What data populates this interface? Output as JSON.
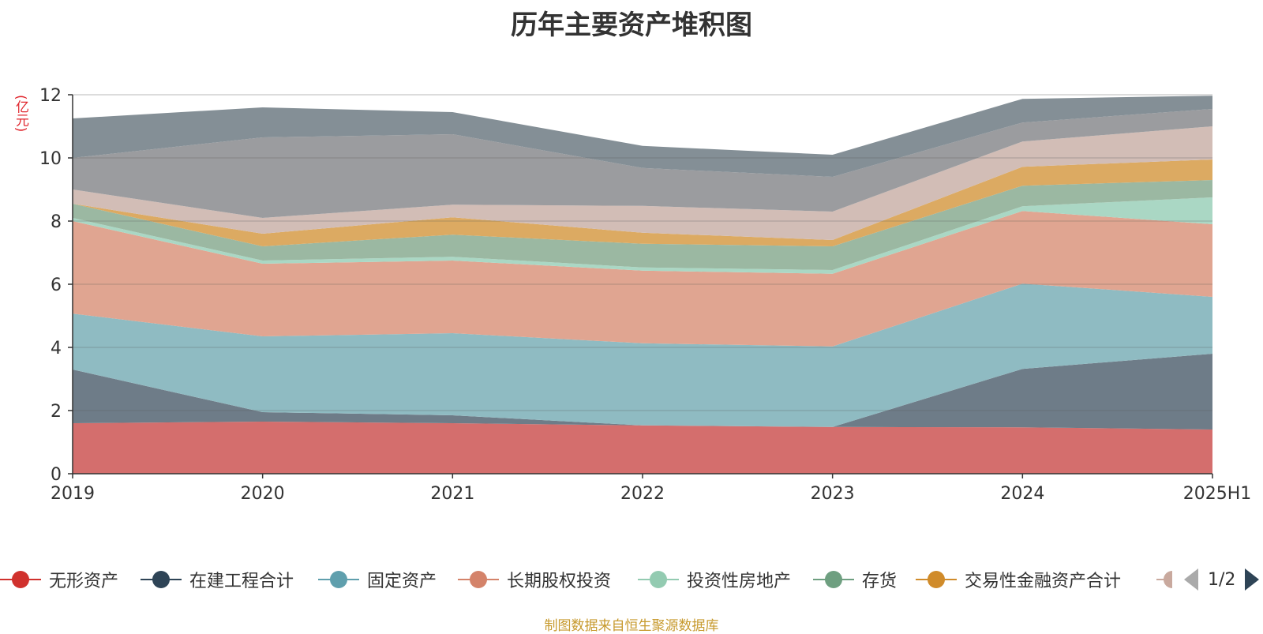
{
  "title": "历年主要资产堆积图",
  "unit_label": "(亿元)",
  "source_text": "制图数据来自恒生聚源数据库",
  "pager": {
    "text": "1/2"
  },
  "legend_items": [
    {
      "name": "无形资产",
      "color": "#d0312d"
    },
    {
      "name": "在建工程合计",
      "color": "#2e4456"
    },
    {
      "name": "固定资产",
      "color": "#5f9fad"
    },
    {
      "name": "长期股权投资",
      "color": "#d4836a"
    },
    {
      "name": "投资性房地产",
      "color": "#93cbb1"
    },
    {
      "name": "存货",
      "color": "#6e9f80"
    },
    {
      "name": "交易性金融资产合计",
      "color": "#d08b2a"
    }
  ],
  "chart_data": {
    "type": "area",
    "stacked": true,
    "x": [
      "2019",
      "2020",
      "2021",
      "2022",
      "2023",
      "2024",
      "2025H1"
    ],
    "ylim": [
      0,
      12
    ],
    "yticks": [
      0,
      2,
      4,
      6,
      8,
      10,
      12
    ],
    "grid": true,
    "legend_position": "bottom",
    "series": [
      {
        "name": "无形资产",
        "color": "#d46e6d",
        "values": [
          1.6,
          1.65,
          1.6,
          1.53,
          1.48,
          1.47,
          1.4
        ]
      },
      {
        "name": "在建工程合计",
        "color": "#6e7c88",
        "values": [
          1.7,
          0.3,
          0.25,
          0.0,
          0.0,
          1.85,
          2.4
        ]
      },
      {
        "name": "固定资产",
        "color": "#8fbbc2",
        "values": [
          1.77,
          2.4,
          2.6,
          2.6,
          2.55,
          2.7,
          1.8
        ]
      },
      {
        "name": "长期股权投资",
        "color": "#e0a591",
        "values": [
          2.93,
          2.3,
          2.3,
          2.3,
          2.3,
          2.3,
          2.3
        ]
      },
      {
        "name": "投资性房地产",
        "color": "#aad7c4",
        "values": [
          0.1,
          0.1,
          0.12,
          0.1,
          0.12,
          0.15,
          0.85
        ]
      },
      {
        "name": "存货",
        "color": "#9bb8a2",
        "values": [
          0.45,
          0.45,
          0.7,
          0.75,
          0.75,
          0.65,
          0.55
        ]
      },
      {
        "name": "交易性金融资产合计",
        "color": "#dcaa62",
        "values": [
          0.0,
          0.4,
          0.55,
          0.35,
          0.2,
          0.6,
          0.65
        ]
      },
      {
        "color": "#d2bdb6",
        "values": [
          0.45,
          0.5,
          0.4,
          0.85,
          0.9,
          0.8,
          1.05
        ]
      },
      {
        "color": "#9b9c9f",
        "values": [
          1.0,
          2.55,
          2.23,
          1.2,
          1.1,
          0.6,
          0.55
        ]
      },
      {
        "color": "#848f96",
        "values": [
          1.25,
          0.95,
          0.7,
          0.7,
          0.7,
          0.75,
          0.42
        ]
      }
    ]
  }
}
